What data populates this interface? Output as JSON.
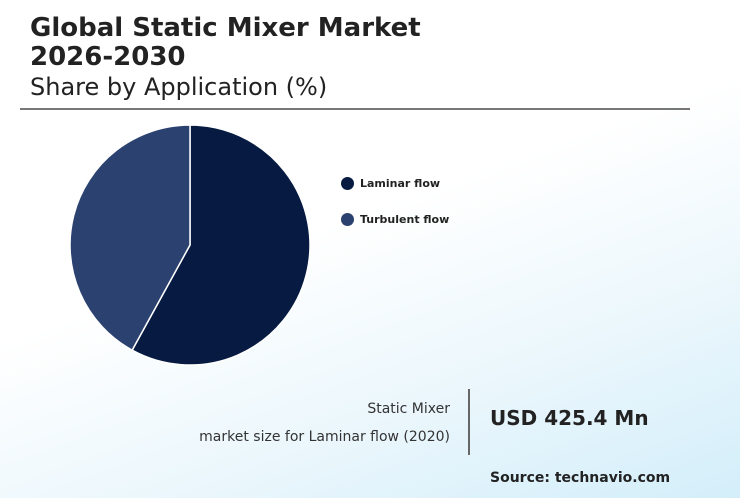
{
  "header": {
    "title_line1": "Global Static Mixer Market",
    "title_line2": "2026-2030",
    "subtitle": "Share by Application (%)"
  },
  "chart_data": {
    "type": "pie",
    "title": "Share by Application (%)",
    "categories": [
      "Laminar flow",
      "Turbulent flow"
    ],
    "values": [
      58,
      42
    ],
    "colors": [
      "#071b42",
      "#2b4170"
    ],
    "legend_position": "right"
  },
  "stat": {
    "label_line1": "Static Mixer",
    "label_line2": "market size for Laminar flow (2020)",
    "value": "USD 425.4 Mn"
  },
  "source": "Source: technavio.com"
}
